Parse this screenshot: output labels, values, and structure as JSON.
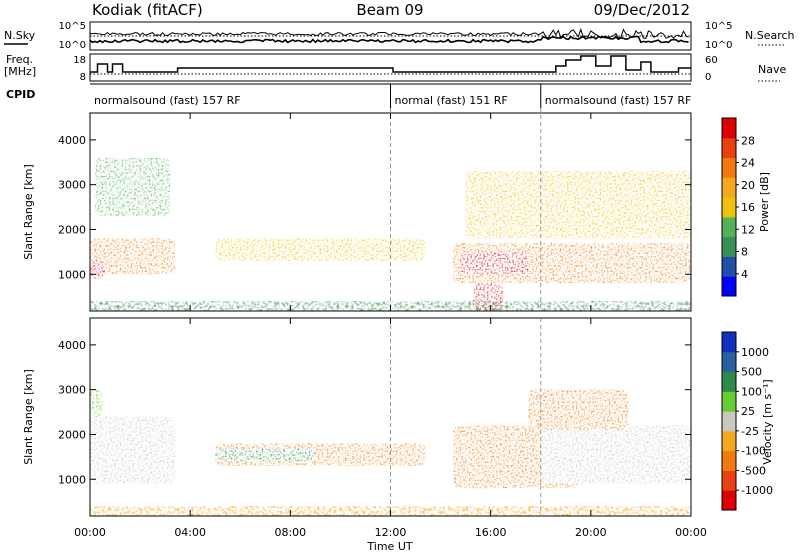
{
  "header": {
    "radar": "Kodiak (fitACF)",
    "beam": "Beam 09",
    "date": "09/Dec/2012"
  },
  "noise_panel": {
    "left_label": "N.Sky",
    "right_label": "N.Search",
    "left_ticks": [
      "10^5",
      "10^0"
    ],
    "right_ticks": [
      "10^5",
      "10^0"
    ]
  },
  "freq_panel": {
    "left_label_1": "Freq.",
    "left_label_2": "[MHz]",
    "right_label": "Nave",
    "left_ticks": [
      "18",
      "8"
    ],
    "right_ticks": [
      "60",
      "0"
    ]
  },
  "cpid": {
    "label": "CPID",
    "segments": [
      {
        "start_hour": 0,
        "end_hour": 12,
        "text": "normalsound (fast) 157 RF"
      },
      {
        "start_hour": 12,
        "end_hour": 18,
        "text": "normal (fast) 151 RF"
      },
      {
        "start_hour": 18,
        "end_hour": 24,
        "text": "normalsound (fast) 157 RF"
      }
    ]
  },
  "x_axis": {
    "label": "Time UT",
    "ticks": [
      "00:00",
      "04:00",
      "08:00",
      "12:00",
      "16:00",
      "20:00",
      "00:00"
    ],
    "range_hours": [
      0,
      24
    ],
    "dashed_markers_hours": [
      12,
      18
    ]
  },
  "power_panel": {
    "ylabel": "Slant Range [km]",
    "yticks": [
      "1000",
      "2000",
      "3000",
      "4000"
    ],
    "colorbar_label": "Power [dB]",
    "colorbar_ticks": [
      "4",
      "8",
      "12",
      "16",
      "20",
      "24",
      "28"
    ],
    "colors": [
      "#0000ff",
      "#1f4fa8",
      "#3a8f57",
      "#55b05a",
      "#f0c010",
      "#f4a820",
      "#f07a10",
      "#e84010",
      "#dd0000"
    ]
  },
  "velocity_panel": {
    "ylabel": "Slant Range [km]",
    "yticks": [
      "1000",
      "2000",
      "3000",
      "4000"
    ],
    "colorbar_label": "Velocity [m s⁻¹]",
    "colorbar_ticks": [
      "1000",
      "500",
      "100",
      "25",
      "-25",
      "-100",
      "-500",
      "-1000"
    ],
    "colors": [
      "#1030c0",
      "#2a60a0",
      "#2f8a4a",
      "#66cc33",
      "#c8c8c0",
      "#f4a820",
      "#f07a10",
      "#e84010",
      "#dd0000"
    ]
  },
  "chart_data": {
    "type": "heatmap",
    "title": "Kodiak (fitACF) Beam 09 09/Dec/2012",
    "xlabel": "Time UT",
    "ylabel": "Slant Range [km]",
    "xlim_hours": [
      0,
      24
    ],
    "ylim_km": [
      180,
      4600
    ],
    "power_scale_db": [
      0,
      30
    ],
    "velocity_scale": [
      -1000,
      1000
    ],
    "power_echo_regions": [
      {
        "t_start": 0.0,
        "t_end": 3.4,
        "r_low": 1000,
        "r_high": 1800,
        "power_db": 22
      },
      {
        "t_start": 0.0,
        "t_end": 0.6,
        "r_low": 900,
        "r_high": 1300,
        "power_db": 28
      },
      {
        "t_start": 0.2,
        "t_end": 3.2,
        "r_low": 2300,
        "r_high": 3600,
        "power_db": 10
      },
      {
        "t_start": 5.0,
        "t_end": 13.4,
        "r_low": 1300,
        "r_high": 1800,
        "power_db": 14
      },
      {
        "t_start": 14.5,
        "t_end": 24.0,
        "r_low": 800,
        "r_high": 1700,
        "power_db": 22
      },
      {
        "t_start": 14.8,
        "t_end": 17.5,
        "r_low": 1000,
        "r_high": 1500,
        "power_db": 27
      },
      {
        "t_start": 15.3,
        "t_end": 16.5,
        "r_low": 200,
        "r_high": 800,
        "power_db": 28
      },
      {
        "t_start": 15.0,
        "t_end": 24.0,
        "r_low": 1800,
        "r_high": 3300,
        "power_db": 14
      }
    ],
    "velocity_echo_regions": [
      {
        "t_start": 0.0,
        "t_end": 3.4,
        "r_low": 900,
        "r_high": 2400,
        "velocity": 0
      },
      {
        "t_start": 0.0,
        "t_end": 0.5,
        "r_low": 2400,
        "r_high": 3000,
        "velocity": 100
      },
      {
        "t_start": 5.0,
        "t_end": 13.4,
        "r_low": 1300,
        "r_high": 1800,
        "velocity": -100
      },
      {
        "t_start": 5.0,
        "t_end": 9.0,
        "r_low": 1400,
        "r_high": 1700,
        "velocity": 200
      },
      {
        "t_start": 14.5,
        "t_end": 19.5,
        "r_low": 800,
        "r_high": 2200,
        "velocity": -300
      },
      {
        "t_start": 18.0,
        "t_end": 24.0,
        "r_low": 900,
        "r_high": 2200,
        "velocity": 0
      },
      {
        "t_start": 17.5,
        "t_end": 21.5,
        "r_low": 2100,
        "r_high": 3000,
        "velocity": -400
      }
    ]
  }
}
